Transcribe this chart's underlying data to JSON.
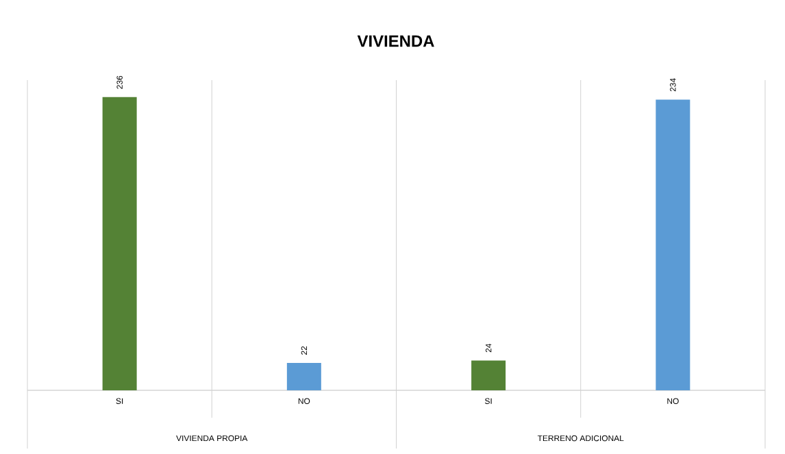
{
  "chart_data": {
    "type": "bar",
    "title": "VIVIENDA",
    "categories": [
      "SI",
      "NO",
      "SI",
      "NO"
    ],
    "values": [
      236,
      22,
      24,
      234
    ],
    "colors": [
      "#548235",
      "#5b9bd5",
      "#548235",
      "#5b9bd5"
    ],
    "data_labels": true,
    "annotations": [
      "VIVIENDA PROPIA",
      "TERRENO ADICIONAL"
    ]
  }
}
